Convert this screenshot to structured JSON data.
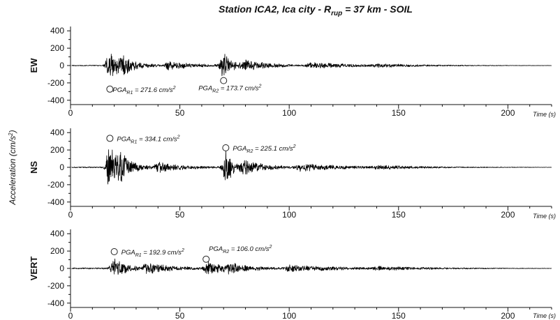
{
  "figure": {
    "title_prefix": "Station ICA2, Ica city - R",
    "title_sub": "rup",
    "title_suffix": " = 37 km - SOIL",
    "ylabel": "Acceleration (cm/s",
    "ylabel_sup": "2",
    "ylabel_suffix": ")"
  },
  "chart_data": [
    {
      "type": "line",
      "component": "EW",
      "xlabel": "Time (s)",
      "xlim": [
        0,
        220
      ],
      "ylim": [
        -450,
        450
      ],
      "xticks": [
        0,
        50,
        100,
        150,
        200
      ],
      "yticks": [
        400,
        200,
        0,
        -200,
        -400
      ],
      "envelope": {
        "base": 5,
        "bursts": [
          {
            "t": 18,
            "amp": 200,
            "width": 4
          },
          {
            "t": 24,
            "amp": 90,
            "width": 7
          },
          {
            "t": 45,
            "amp": 45,
            "width": 12
          },
          {
            "t": 70,
            "amp": 150,
            "width": 4
          },
          {
            "t": 80,
            "amp": 55,
            "width": 12
          },
          {
            "t": 110,
            "amp": 35,
            "width": 20
          },
          {
            "t": 140,
            "amp": 12,
            "width": 25
          }
        ]
      },
      "annotations": [
        {
          "label": "PGA",
          "sub": "R1",
          "text": " = 271.6 cm/s",
          "sup": "2",
          "t": 18,
          "value": -271.6
        },
        {
          "label": "PGA",
          "sub": "R2",
          "text": " = 173.7 cm/s",
          "sup": "2",
          "t": 70,
          "value": -173.7
        }
      ]
    },
    {
      "type": "line",
      "component": "NS",
      "xlabel": "Time (s)",
      "xlim": [
        0,
        220
      ],
      "ylim": [
        -450,
        450
      ],
      "xticks": [
        0,
        50,
        100,
        150,
        200
      ],
      "yticks": [
        400,
        200,
        0,
        -200,
        -400
      ],
      "envelope": {
        "base": 6,
        "bursts": [
          {
            "t": 18,
            "amp": 300,
            "width": 3.5
          },
          {
            "t": 23,
            "amp": 120,
            "width": 6
          },
          {
            "t": 40,
            "amp": 55,
            "width": 12
          },
          {
            "t": 71,
            "amp": 200,
            "width": 4
          },
          {
            "t": 80,
            "amp": 70,
            "width": 10
          },
          {
            "t": 105,
            "amp": 40,
            "width": 20
          },
          {
            "t": 140,
            "amp": 15,
            "width": 25
          }
        ]
      },
      "annotations": [
        {
          "label": "PGA",
          "sub": "R1",
          "text": " = 334.1 cm/s",
          "sup": "2",
          "t": 18,
          "value": 334.1
        },
        {
          "label": "PGA",
          "sub": "R2",
          "text": " = 225.1 cm/s",
          "sup": "2",
          "t": 71,
          "value": 225.1
        }
      ]
    },
    {
      "type": "line",
      "component": "VERT",
      "xlabel": "Time (s)",
      "xlim": [
        0,
        220
      ],
      "ylim": [
        -450,
        450
      ],
      "xticks": [
        0,
        50,
        100,
        150,
        200
      ],
      "yticks": [
        400,
        200,
        0,
        -200,
        -400
      ],
      "envelope": {
        "base": 8,
        "bursts": [
          {
            "t": 20,
            "amp": 120,
            "width": 6
          },
          {
            "t": 35,
            "amp": 60,
            "width": 12
          },
          {
            "t": 63,
            "amp": 80,
            "width": 6
          },
          {
            "t": 72,
            "amp": 55,
            "width": 10
          },
          {
            "t": 100,
            "amp": 35,
            "width": 22
          },
          {
            "t": 140,
            "amp": 14,
            "width": 25
          }
        ]
      },
      "annotations": [
        {
          "label": "PGA",
          "sub": "R1",
          "text": " = 192.9 cm/s",
          "sup": "2",
          "t": 20,
          "value": 192.9
        },
        {
          "label": "PGA",
          "sub": "R2",
          "text": " = 106.0 cm/s",
          "sup": "2",
          "t": 62,
          "value": 106.0
        }
      ]
    }
  ]
}
